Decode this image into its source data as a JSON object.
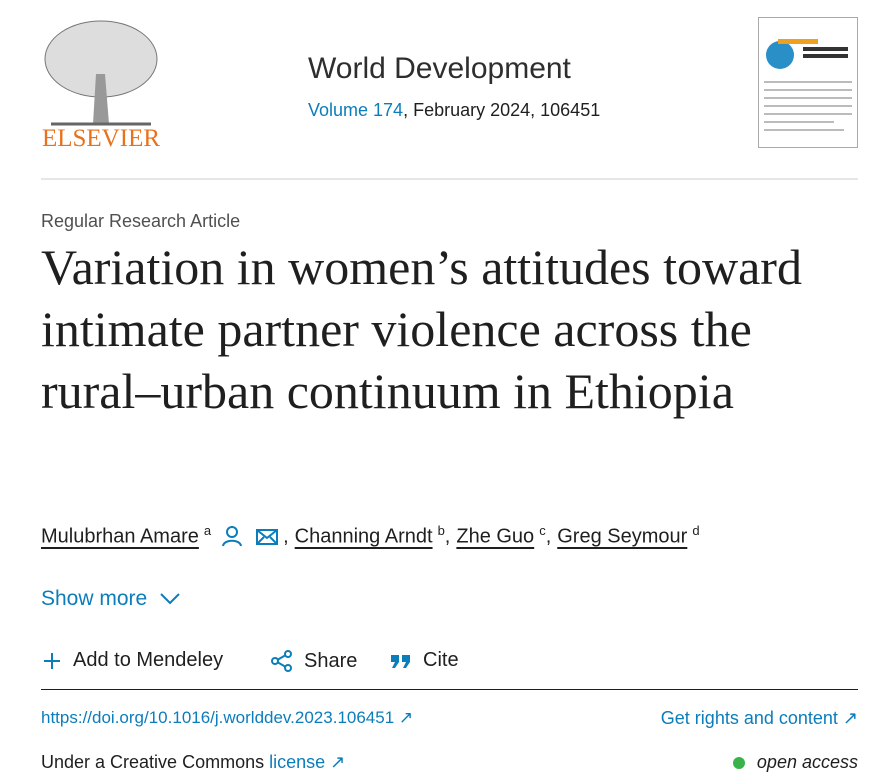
{
  "header": {
    "publisher": "ELSEVIER",
    "journal": "World Development",
    "volume": "Volume 174",
    "issue_details": ", February 2024, 106451"
  },
  "article": {
    "type": "Regular Research Article",
    "title": "Variation in women’s attitudes toward intimate partner violence across the rural–urban continuum in Ethiopia",
    "authors": [
      {
        "name": "Mulubrhan Amare",
        "affiliation": "a",
        "separator": ","
      },
      {
        "name": "Channing Arndt",
        "affiliation": "b",
        "separator": ","
      },
      {
        "name": "Zhe Guo",
        "affiliation": "c",
        "separator": ","
      },
      {
        "name": "Greg Seymour",
        "affiliation": "d"
      }
    ],
    "show_more": "Show more"
  },
  "actions": [
    "Add to Mendeley",
    "Share",
    "Cite"
  ],
  "links": {
    "doi": "https://doi.org/10.1016/j.worlddev.2023.106451",
    "rights": "Get rights and content",
    "license_prefix": "Under a Creative Commons",
    "license": "license",
    "access": "open access"
  }
}
